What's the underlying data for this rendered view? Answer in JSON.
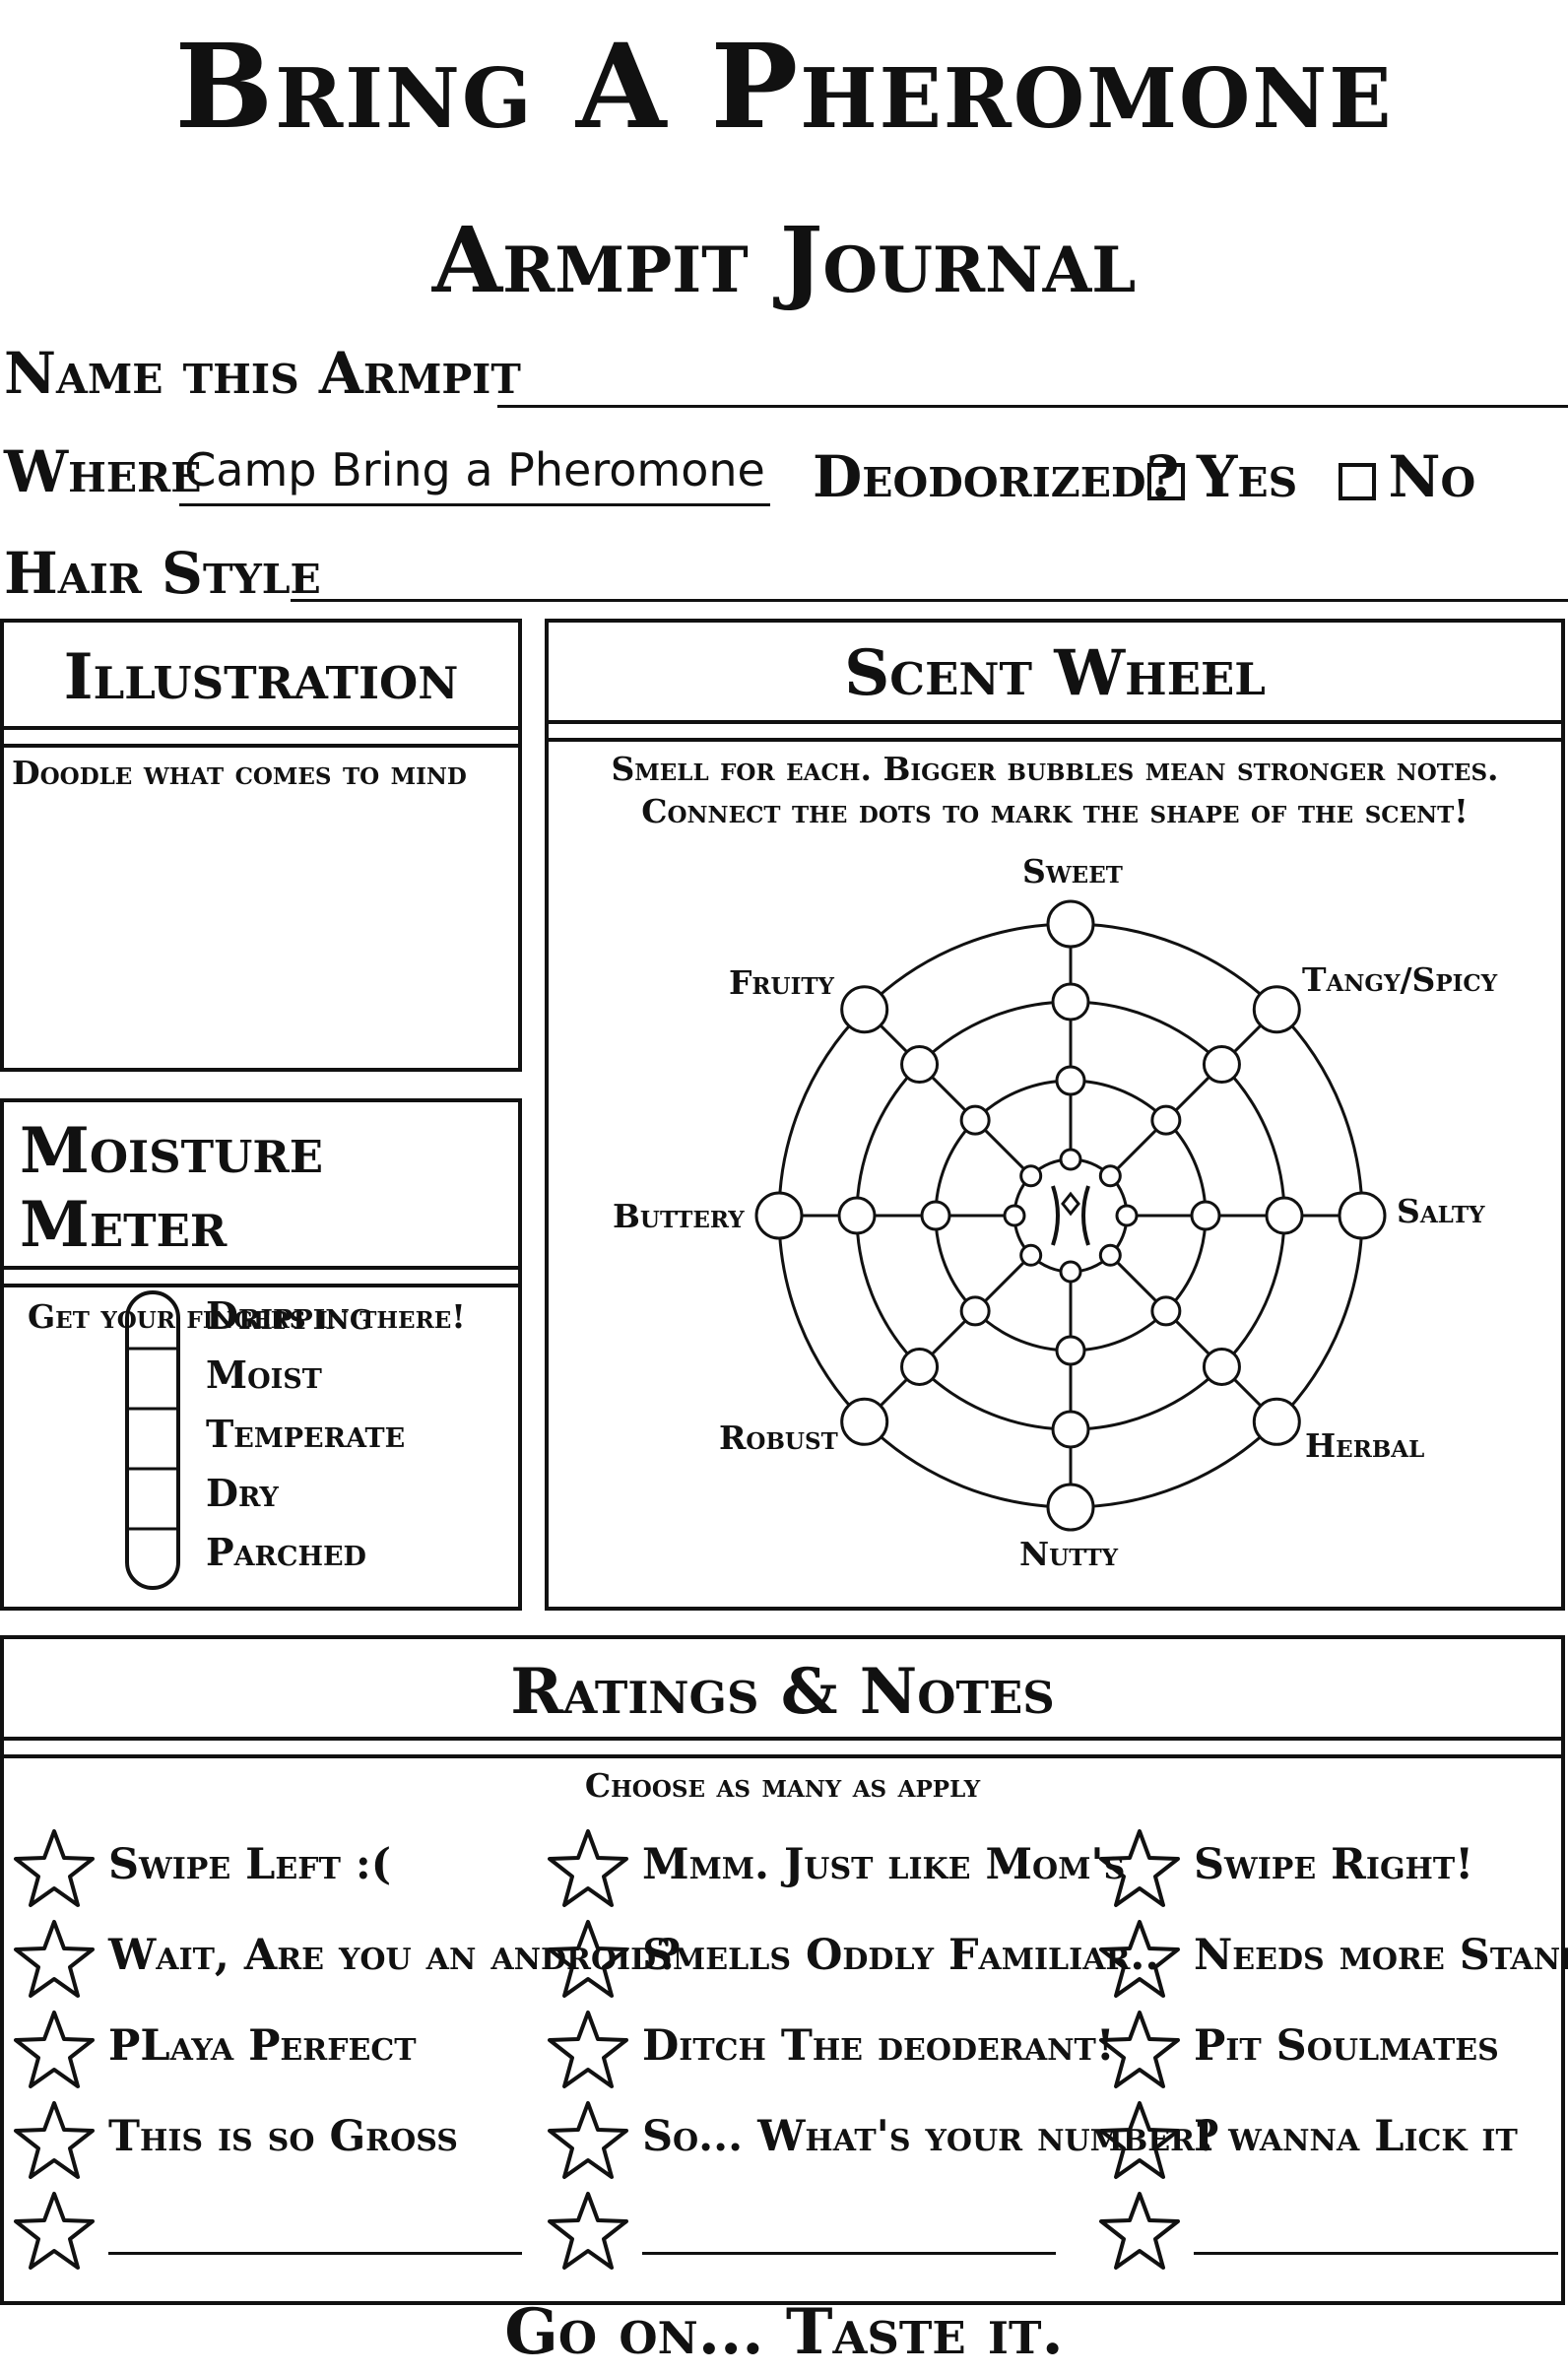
{
  "header": {
    "title": "Bring A Pheromone",
    "subtitle": "Armpit Journal"
  },
  "fields": {
    "name_label": "Name this Armpit",
    "where_label": "Where",
    "where_value": "Camp Bring a Pheromone",
    "deodorized_label": "Deodorized?",
    "yes_label": "Yes",
    "no_label": "No",
    "hair_label": "Hair Style"
  },
  "illustration": {
    "title": "Illustration",
    "instruction": "Doodle what comes to mind"
  },
  "moisture": {
    "title": "Moisture Meter",
    "instruction": "Get your fingers in there!",
    "levels": [
      "Dripping",
      "Moist",
      "Temperate",
      "Dry",
      "Parched"
    ]
  },
  "scent_wheel": {
    "title": "Scent Wheel",
    "instruction_1": "Smell for each. Bigger bubbles mean stronger notes.",
    "instruction_2": "Connect the dots to mark the shape of the scent!",
    "notes": [
      "Sweet",
      "Tangy/Spicy",
      "Salty",
      "Herbal",
      "Nutty",
      "Robust",
      "Buttery",
      "Fruity"
    ]
  },
  "ratings": {
    "title": "Ratings & Notes",
    "instruction": "Choose as many as apply",
    "col1": [
      "Swipe Left :(",
      "Wait, Are you an android?",
      "PLaya Perfect",
      "This is so Gross"
    ],
    "col2": [
      "Mmm. Just like Mom's",
      "Smells Oddly Familiar..",
      "Ditch The deoderant!",
      "So... What's your number?"
    ],
    "col3": [
      "Swipe Right!",
      "Needs more Stank!",
      "Pit Soulmates",
      "I wanna Lick it"
    ]
  },
  "footer": {
    "text": "Go on... Taste it."
  }
}
